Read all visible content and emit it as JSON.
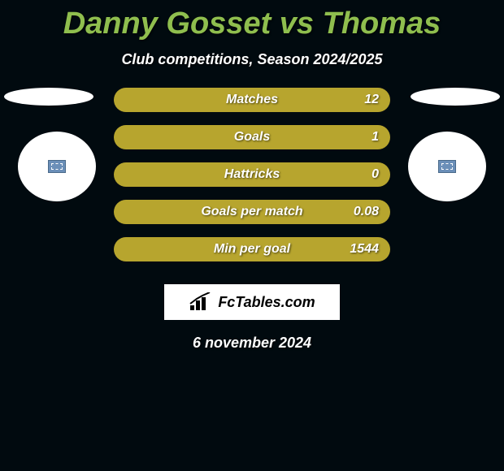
{
  "title": "Danny Gosset vs Thomas",
  "subtitle": "Club competitions, Season 2024/2025",
  "background_color": "#010a0f",
  "title_color": "#8fbe4e",
  "text_color": "#ffffff",
  "bar_color_filled": "#b7a52e",
  "bar_color_empty": "#b7a52e",
  "bar_border_radius": 16,
  "bars": [
    {
      "label": "Matches",
      "value": "12",
      "fill_pct": 100
    },
    {
      "label": "Goals",
      "value": "1",
      "fill_pct": 100
    },
    {
      "label": "Hattricks",
      "value": "0",
      "fill_pct": 100
    },
    {
      "label": "Goals per match",
      "value": "0.08",
      "fill_pct": 100
    },
    {
      "label": "Min per goal",
      "value": "1544",
      "fill_pct": 100
    }
  ],
  "logo_text": "FcTables.com",
  "date": "6 november 2024",
  "flag_color": "#ffffff",
  "badge_bg": "#ffffff",
  "badge_icon_bg": "#6b8fb8"
}
